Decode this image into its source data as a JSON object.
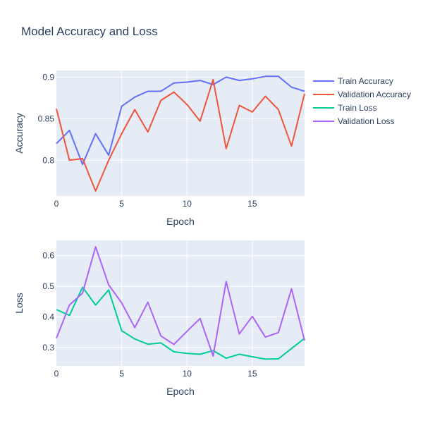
{
  "chart_data": {
    "title": "Model Accuracy and Loss",
    "x": [
      0,
      1,
      2,
      3,
      4,
      5,
      6,
      7,
      8,
      9,
      10,
      11,
      12,
      13,
      14,
      15,
      16,
      17,
      18,
      19
    ],
    "legend": {
      "position": "top-right"
    },
    "subplots": [
      {
        "id": "accuracy",
        "type": "line",
        "xlabel": "Epoch",
        "ylabel": "Accuracy",
        "xlim": [
          0,
          19
        ],
        "ylim": [
          0.757,
          0.908
        ],
        "xticks": [
          0,
          5,
          10,
          15
        ],
        "yticks": [
          0.8,
          0.85,
          0.9
        ],
        "grid": true,
        "series": [
          {
            "name": "Train Accuracy",
            "color": "#636efa",
            "values": [
              0.82,
              0.836,
              0.795,
              0.832,
              0.806,
              0.865,
              0.876,
              0.883,
              0.883,
              0.893,
              0.894,
              0.896,
              0.891,
              0.9,
              0.896,
              0.898,
              0.901,
              0.901,
              0.888,
              0.883
            ]
          },
          {
            "name": "Validation Accuracy",
            "color": "#EF553B",
            "values": [
              0.862,
              0.8,
              0.802,
              0.763,
              0.8,
              0.832,
              0.861,
              0.834,
              0.872,
              0.882,
              0.867,
              0.847,
              0.897,
              0.814,
              0.866,
              0.858,
              0.877,
              0.861,
              0.817,
              0.88
            ]
          }
        ]
      },
      {
        "id": "loss",
        "type": "line",
        "xlabel": "Epoch",
        "ylabel": "Loss",
        "xlim": [
          0,
          19
        ],
        "ylim": [
          0.24,
          0.65
        ],
        "xticks": [
          0,
          5,
          10,
          15
        ],
        "yticks": [
          0.3,
          0.4,
          0.5,
          0.6
        ],
        "grid": true,
        "series": [
          {
            "name": "Train Loss",
            "color": "#00cc96",
            "values": [
              0.424,
              0.405,
              0.497,
              0.439,
              0.488,
              0.355,
              0.328,
              0.311,
              0.315,
              0.286,
              0.281,
              0.278,
              0.29,
              0.265,
              0.278,
              0.27,
              0.262,
              0.263,
              0.297,
              0.33
            ]
          },
          {
            "name": "Validation Loss",
            "color": "#ab63fa",
            "values": [
              0.33,
              0.439,
              0.478,
              0.629,
              0.505,
              0.446,
              0.365,
              0.448,
              0.338,
              0.31,
              0.353,
              0.395,
              0.272,
              0.516,
              0.344,
              0.402,
              0.334,
              0.349,
              0.492,
              0.323
            ]
          }
        ]
      }
    ]
  }
}
